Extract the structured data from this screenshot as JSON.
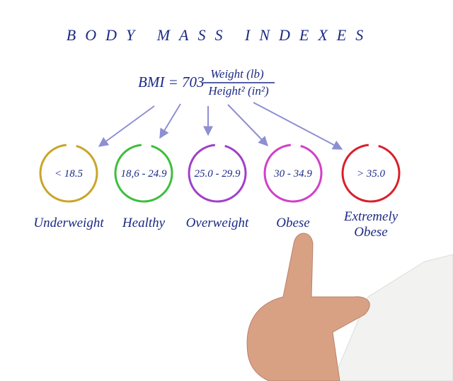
{
  "title": "BODY MASS INDEXES",
  "formula": {
    "lhs": "BMI = 703",
    "numerator": "Weight (lb)",
    "denominator": "Height² (in²)"
  },
  "nodes": [
    {
      "range": "< 18.5",
      "label": "Underweight",
      "color": "#c9a52a"
    },
    {
      "range": "18,6 - 24.9",
      "label": "Healthy",
      "color": "#3cbf3c"
    },
    {
      "range": "25.0 - 29.9",
      "label": "Overweight",
      "color": "#a040c8"
    },
    {
      "range": "30 - 34.9",
      "label": "Obese",
      "color": "#d040c8"
    },
    {
      "range": "> 35.0",
      "label": "Extremely Obese",
      "color": "#d8202a"
    }
  ]
}
